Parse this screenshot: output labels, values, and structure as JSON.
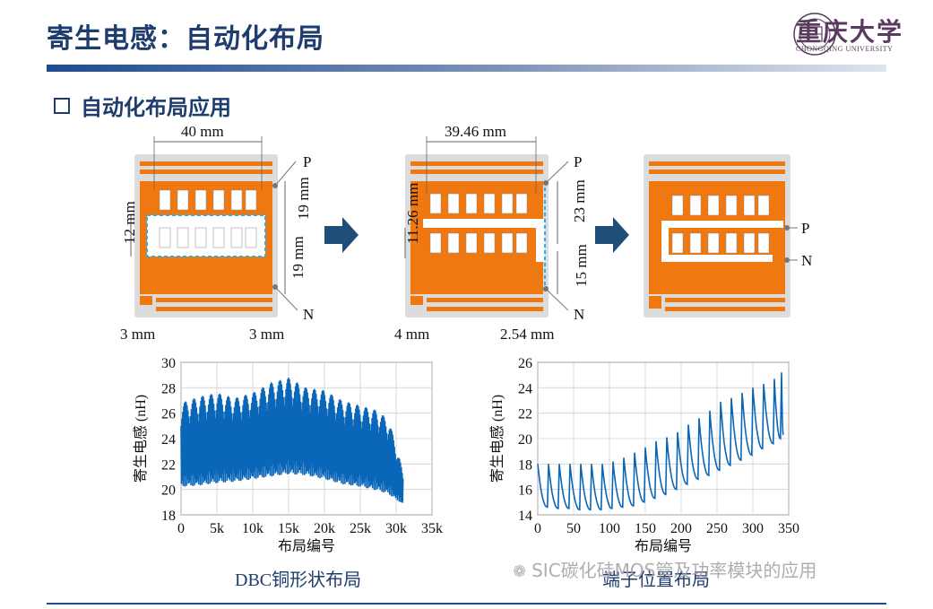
{
  "header": {
    "title": "寄生电感：自动化布局",
    "logo_name": "重庆大学",
    "logo_sub": "CHONGQING UNIVERSITY",
    "accent": "#1f3c6e"
  },
  "section": {
    "title": "自动化布局应用"
  },
  "layouts": [
    {
      "dims": [
        "40 mm",
        "12 mm",
        "19 mm",
        "19 mm",
        "3 mm",
        "3 mm"
      ],
      "p": "P",
      "n": "N"
    },
    {
      "dims": [
        "39.46 mm",
        "11.26 mm",
        "23 mm",
        "15 mm",
        "4 mm",
        "2.54 mm"
      ],
      "p": "P",
      "n": "N"
    },
    {
      "p": "P",
      "n": "N"
    }
  ],
  "chart_data": [
    {
      "type": "line",
      "ylabel": "寄生电感 (nH)",
      "xlabel": "布局编号",
      "xticks": [
        "0",
        "5k",
        "10k",
        "15k",
        "20k",
        "25k",
        "30k",
        "35k"
      ],
      "yticks": [
        "18",
        "20",
        "22",
        "24",
        "26",
        "28",
        "30"
      ],
      "xlim": [
        0,
        35000
      ],
      "ylim": [
        18,
        30
      ],
      "grid": true,
      "caption": "DBC铜形状布局",
      "series": [
        {
          "color": "#0a66b8",
          "x": [
            0,
            2500,
            5000,
            7500,
            10000,
            12500,
            15000,
            17500,
            20000,
            22500,
            25000,
            27500,
            29000,
            30500,
            31000
          ],
          "y_max": [
            26.8,
            27.3,
            27.6,
            27.2,
            27.6,
            28.4,
            28.8,
            28.0,
            27.8,
            27.0,
            26.6,
            26.2,
            25.4,
            22.4,
            21.0
          ],
          "y_min": [
            20.2,
            20.3,
            20.5,
            20.6,
            20.8,
            21.0,
            21.2,
            21.1,
            20.8,
            20.4,
            20.2,
            19.9,
            19.6,
            19.0,
            18.8
          ]
        }
      ]
    },
    {
      "type": "line",
      "ylabel": "寄生电感 (nH)",
      "xlabel": "布局编号",
      "xticks": [
        "0",
        "50",
        "100",
        "150",
        "200",
        "250",
        "300",
        "350"
      ],
      "yticks": [
        "14",
        "16",
        "18",
        "20",
        "22",
        "24",
        "26"
      ],
      "xlim": [
        0,
        350
      ],
      "ylim": [
        14,
        26
      ],
      "grid": true,
      "caption": "端子位置布局",
      "series": [
        {
          "color": "#0a66b8",
          "peaks_x": [
            0,
            15,
            30,
            45,
            60,
            75,
            90,
            105,
            120,
            135,
            150,
            165,
            180,
            195,
            210,
            225,
            240,
            255,
            270,
            285,
            300,
            315,
            330,
            340
          ],
          "peaks_y": [
            18,
            18,
            18,
            18,
            18,
            18,
            18,
            18.2,
            18.5,
            18.9,
            19.3,
            19.8,
            20.1,
            20.5,
            21.1,
            21.6,
            22.2,
            22.9,
            23.2,
            23.6,
            24.0,
            24.3,
            24.7,
            25.2
          ],
          "troughs_y": [
            14.6,
            14.5,
            14.5,
            14.4,
            14.4,
            14.4,
            14.5,
            14.6,
            14.7,
            15.0,
            15.3,
            15.6,
            16.0,
            16.4,
            16.8,
            17.1,
            17.5,
            17.9,
            18.3,
            18.7,
            19.2,
            19.6,
            20.0,
            20.3
          ]
        }
      ]
    }
  ],
  "watermark": "SIC碳化硅MOS管及功率模块的应用"
}
